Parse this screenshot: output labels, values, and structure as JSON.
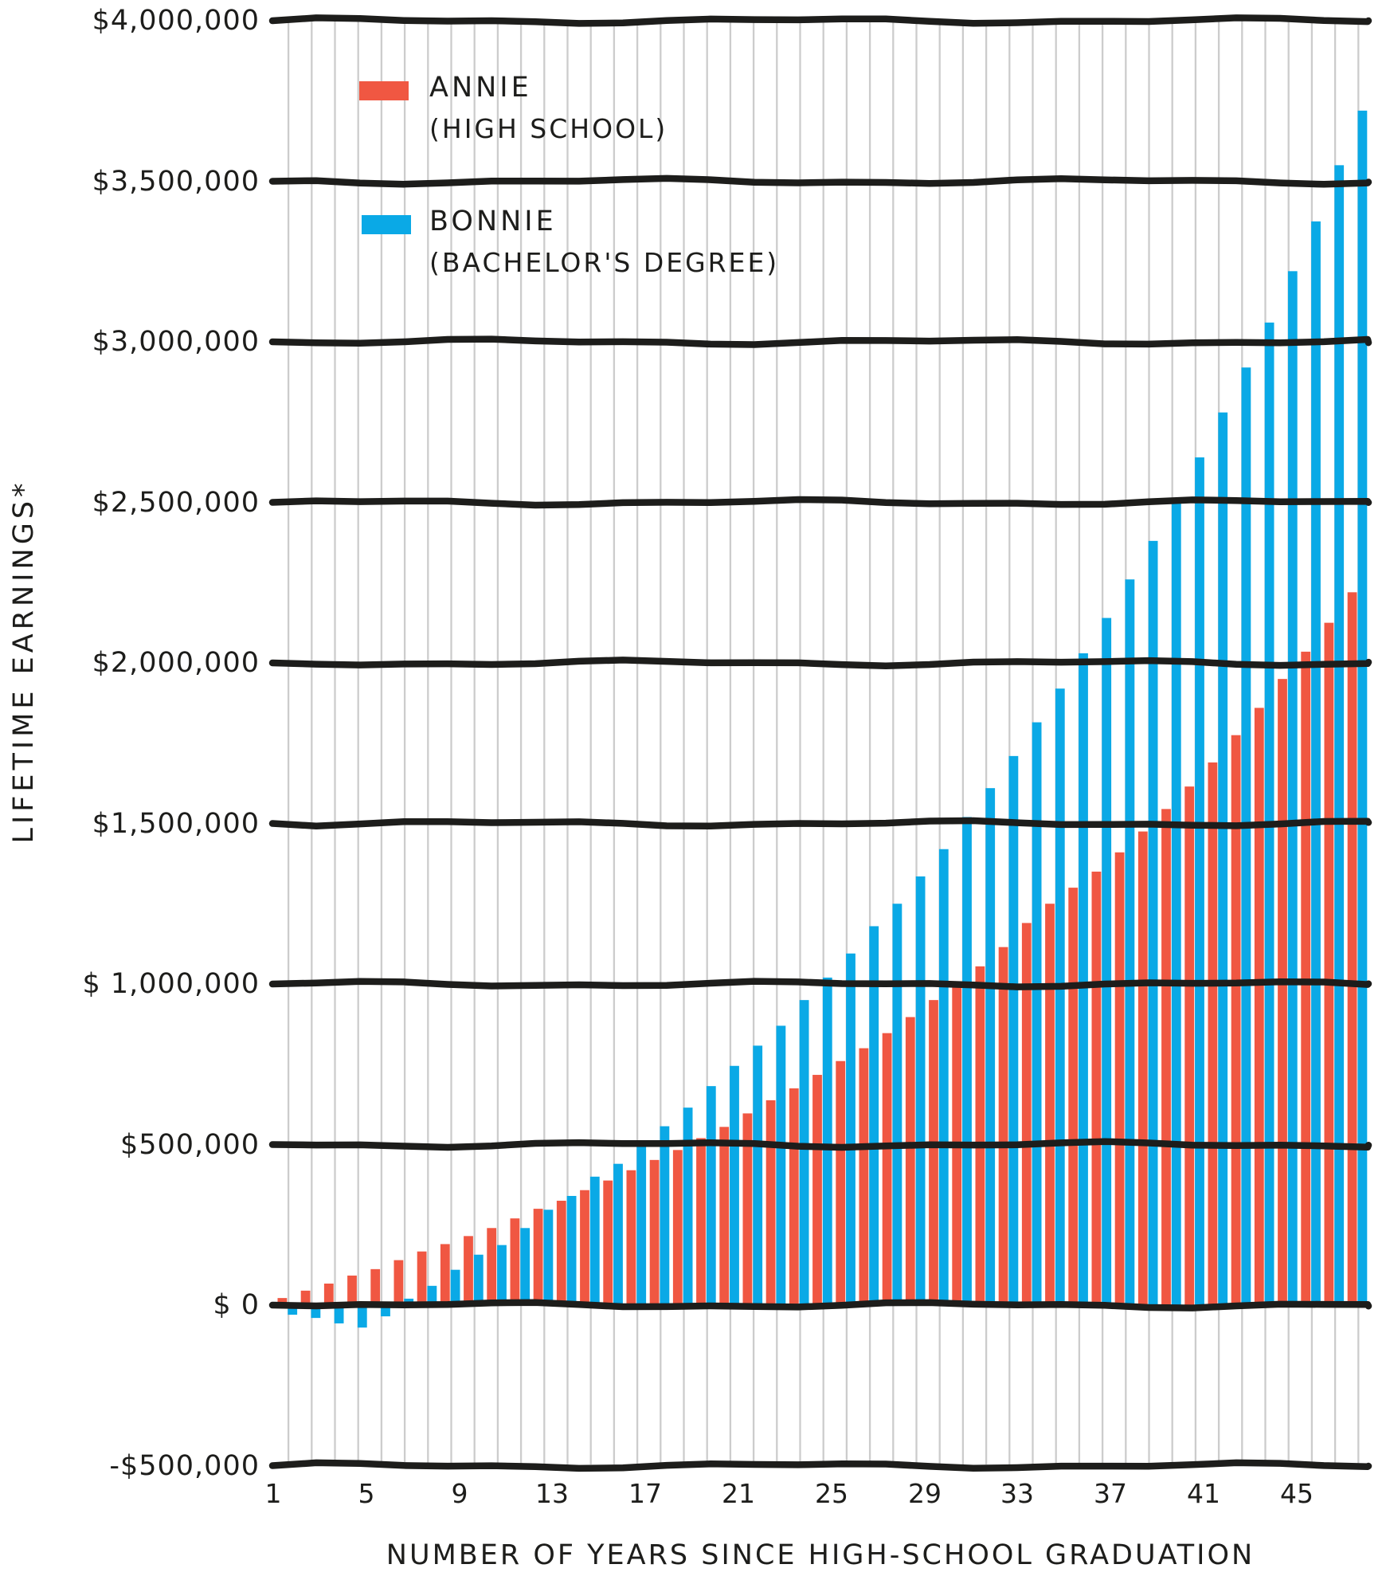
{
  "chart_data": {
    "type": "bar",
    "title": "",
    "xlabel": "NUMBER OF YEARS SINCE HIGH-SCHOOL GRADUATION",
    "ylabel": "LIFETIME EARNINGS*",
    "n_years": 47,
    "x": [
      1,
      2,
      3,
      4,
      5,
      6,
      7,
      8,
      9,
      10,
      11,
      12,
      13,
      14,
      15,
      16,
      17,
      18,
      19,
      20,
      21,
      22,
      23,
      24,
      25,
      26,
      27,
      28,
      29,
      30,
      31,
      32,
      33,
      34,
      35,
      36,
      37,
      38,
      39,
      40,
      41,
      42,
      43,
      44,
      45,
      46,
      47
    ],
    "series": [
      {
        "name": "ANNIE",
        "qualifier": "(HIGH SCHOOL)",
        "color": "#f05742",
        "values": [
          22000,
          45000,
          67000,
          92000,
          112000,
          140000,
          167000,
          190000,
          215000,
          240000,
          270000,
          300000,
          325000,
          358000,
          388000,
          420000,
          452000,
          483000,
          520000,
          555000,
          597000,
          638000,
          675000,
          717000,
          760000,
          800000,
          847000,
          897000,
          950000,
          1000000,
          1055000,
          1115000,
          1190000,
          1250000,
          1300000,
          1350000,
          1410000,
          1475000,
          1545000,
          1615000,
          1690000,
          1775000,
          1860000,
          1950000,
          2035000,
          2125000,
          2220000
        ]
      },
      {
        "name": "BONNIE",
        "qualifier": "(BACHELOR'S DEGREE)",
        "color": "#0aa9e6",
        "values": [
          -30000,
          -40000,
          -57000,
          -70000,
          -35000,
          20000,
          60000,
          110000,
          157000,
          187000,
          240000,
          297000,
          340000,
          400000,
          440000,
          495000,
          557000,
          615000,
          682000,
          745000,
          808000,
          870000,
          950000,
          1020000,
          1095000,
          1180000,
          1250000,
          1335000,
          1420000,
          1520000,
          1610000,
          1710000,
          1815000,
          1920000,
          2030000,
          2140000,
          2260000,
          2380000,
          2510000,
          2640000,
          2780000,
          2920000,
          3060000,
          3220000,
          3375000,
          3550000,
          3720000
        ]
      }
    ],
    "y_ticks": [
      {
        "label": "$4,000,000",
        "value": 4000000
      },
      {
        "label": "$3,500,000",
        "value": 3500000
      },
      {
        "label": "$3,000,000",
        "value": 3000000
      },
      {
        "label": "$2,500,000",
        "value": 2500000
      },
      {
        "label": "$2,000,000",
        "value": 2000000
      },
      {
        "label": "$1,500,000",
        "value": 1500000
      },
      {
        "label": "$ 1,000,000",
        "value": 1000000
      },
      {
        "label": "$500,000",
        "value": 500000
      },
      {
        "label": "$ 0",
        "value": 0
      },
      {
        "label": "-$500,000",
        "value": -500000
      }
    ],
    "x_ticks": [
      1,
      5,
      9,
      13,
      17,
      21,
      25,
      29,
      33,
      37,
      41,
      45
    ],
    "ylim": [
      -500000,
      4000000
    ],
    "grid": {
      "horizontal": true,
      "vertical": true
    },
    "legend_position": "top-left-inside",
    "style_note": "hand-drawn wobbly black gridlines, thin gray vertical year lines"
  },
  "style": {
    "background": "#ffffff",
    "ink": "#1d1d1b",
    "grid_gray": "#cccccc"
  }
}
